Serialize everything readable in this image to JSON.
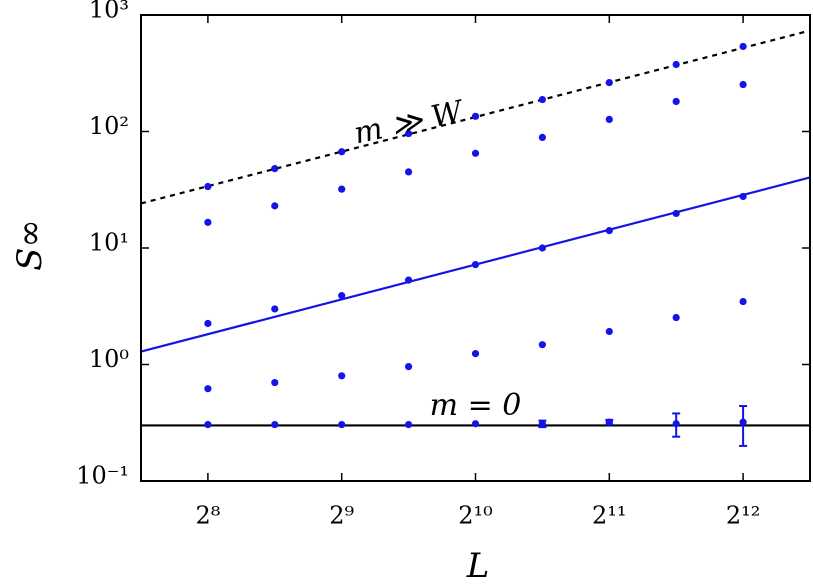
{
  "chart_data": {
    "type": "scatter",
    "xlabel": "L",
    "ylabel": "S∞",
    "log_x": true,
    "log_y": true,
    "xlim": [
      181.02,
      5792.6
    ],
    "ylim": [
      0.1,
      1000
    ],
    "xticks": [
      {
        "value": 256,
        "label": "2⁸"
      },
      {
        "value": 512,
        "label": "2⁹"
      },
      {
        "value": 1024,
        "label": "2¹⁰"
      },
      {
        "value": 2048,
        "label": "2¹¹"
      },
      {
        "value": 4096,
        "label": "2¹²"
      }
    ],
    "yticks": [
      {
        "value": 0.1,
        "label": "10⁻¹"
      },
      {
        "value": 1,
        "label": "10⁰"
      },
      {
        "value": 10,
        "label": "10¹"
      },
      {
        "value": 100,
        "label": "10²"
      },
      {
        "value": 1000,
        "label": "10³"
      }
    ],
    "x": [
      256,
      362,
      512,
      724,
      1024,
      1448,
      2048,
      2896,
      4096
    ],
    "series": [
      {
        "color": "#1414e6",
        "values": [
          33.7,
          48,
          67,
          96,
          135,
          188,
          263,
          376,
          537
        ]
      },
      {
        "color": "#1414e6",
        "values": [
          16.6,
          23,
          32,
          45,
          65,
          89,
          127,
          181,
          253
        ]
      },
      {
        "color": "#1414e6",
        "values": [
          2.25,
          3,
          3.9,
          5.3,
          7.2,
          10,
          14.1,
          19.8,
          27.7
        ]
      },
      {
        "color": "#1414e6",
        "values": [
          0.62,
          0.7,
          0.8,
          0.96,
          1.24,
          1.48,
          1.92,
          2.53,
          3.47
        ]
      },
      {
        "color": "#1414e6",
        "values": [
          0.305,
          0.305,
          0.305,
          0.305,
          0.31,
          0.31,
          0.32,
          0.31,
          0.32
        ],
        "errors": [
          0,
          0,
          0,
          0,
          0,
          0.02,
          0.015,
          0.07,
          0.12
        ]
      }
    ],
    "lines": [
      {
        "color": "#000000",
        "dash": true,
        "x": [
          181.02,
          5792.6
        ],
        "values": [
          24.1,
          736
        ]
      },
      {
        "color": "#1414e6",
        "dash": false,
        "x": [
          181.02,
          5792.6
        ],
        "values": [
          1.29,
          40.3
        ]
      },
      {
        "color": "#000000",
        "dash": false,
        "x": [
          181.02,
          5792.6
        ],
        "values": [
          0.3,
          0.3
        ]
      }
    ],
    "annotations": [
      {
        "text": "m ≫ W",
        "x": 724,
        "y": 115
      },
      {
        "text": "m = 0",
        "x": 1024,
        "y": 0.43
      }
    ]
  }
}
